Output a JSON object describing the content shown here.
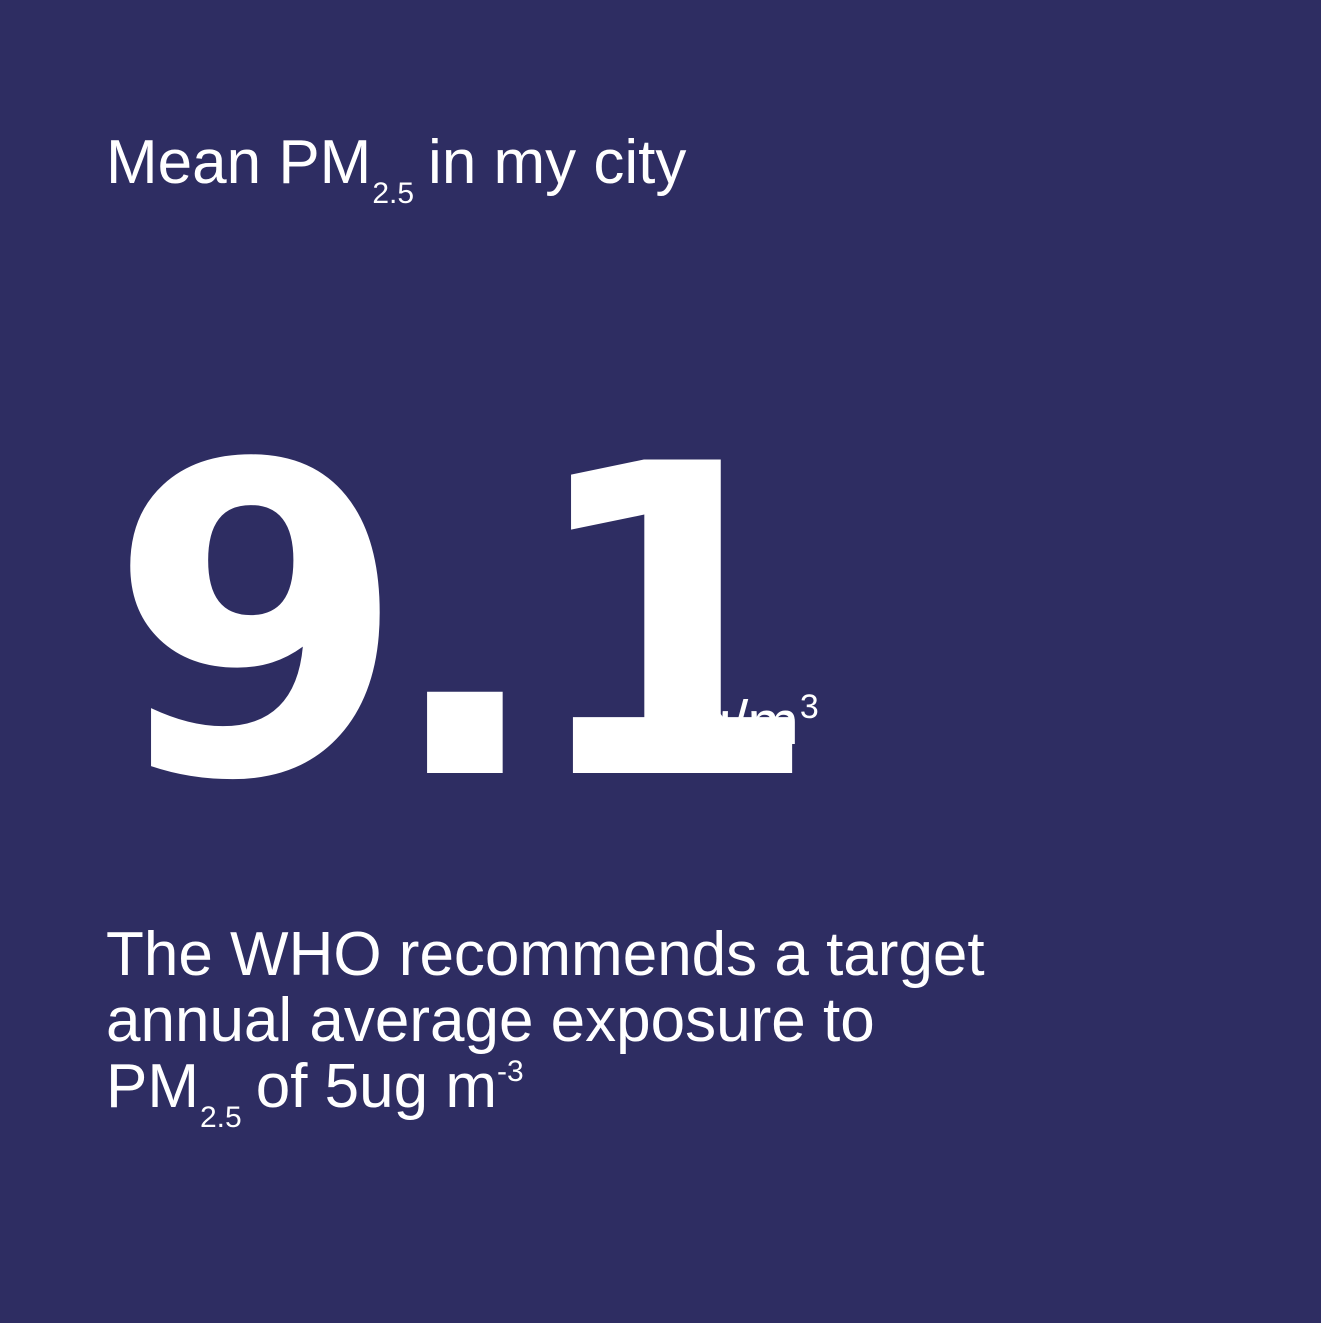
{
  "background_color": "#2e2d62",
  "text_color": "#ffffff",
  "heading": {
    "before": "Mean PM",
    "subscript": "2.5",
    "after": "in my city"
  },
  "metric": {
    "value": "9.1",
    "unit": "ug/m",
    "unit_superscript": "3"
  },
  "note": {
    "line1": "The WHO recommends a target",
    "line2": "annual average exposure to",
    "line3_before": "PM",
    "line3_subscript": "2.5",
    "line3_after": "of 5ug m",
    "line3_superscript": "-3"
  }
}
